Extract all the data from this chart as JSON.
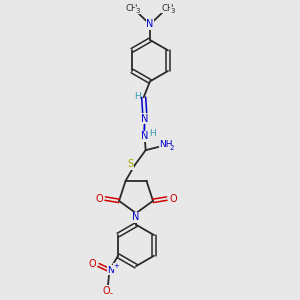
{
  "bg_color": "#e8e8e8",
  "bond_color": "#2a2a2a",
  "N_color": "#0000cc",
  "O_color": "#cc0000",
  "S_color": "#aaaa00",
  "H_color": "#3399aa",
  "figsize": [
    3.0,
    3.0
  ],
  "dpi": 100,
  "xlim": [
    0,
    6
  ],
  "ylim": [
    0,
    10
  ]
}
